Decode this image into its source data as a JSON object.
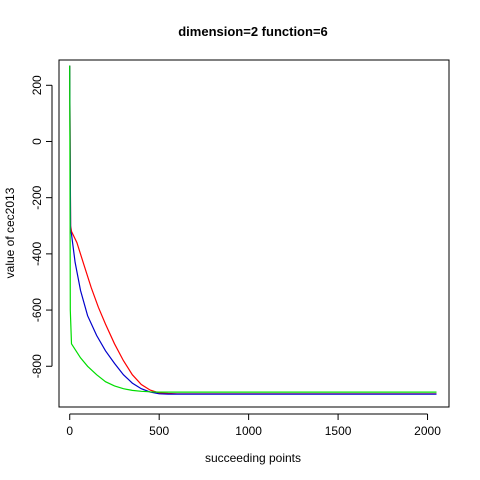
{
  "chart_data": {
    "type": "line",
    "title": "dimension=2 function=6",
    "xlabel": "succeeding points",
    "ylabel": "value of cec2013",
    "xlim": [
      -60,
      2120
    ],
    "ylim": [
      -945,
      290
    ],
    "x_ticks": [
      0,
      500,
      1000,
      1500,
      2000
    ],
    "y_ticks": [
      200,
      0,
      -200,
      -400,
      -600,
      -800
    ],
    "grid": false,
    "legend": "none",
    "series": [
      {
        "color": "#ff0000",
        "points": [
          [
            0,
            270
          ],
          [
            5,
            -300
          ],
          [
            10,
            -320
          ],
          [
            40,
            -360
          ],
          [
            80,
            -440
          ],
          [
            120,
            -520
          ],
          [
            160,
            -590
          ],
          [
            200,
            -650
          ],
          [
            250,
            -720
          ],
          [
            300,
            -780
          ],
          [
            350,
            -830
          ],
          [
            400,
            -865
          ],
          [
            450,
            -885
          ],
          [
            500,
            -895
          ],
          [
            550,
            -897
          ],
          [
            600,
            -898
          ],
          [
            1000,
            -898
          ],
          [
            2050,
            -898
          ]
        ]
      },
      {
        "color": "#0000cc",
        "points": [
          [
            0,
            270
          ],
          [
            5,
            -320
          ],
          [
            10,
            -330
          ],
          [
            30,
            -430
          ],
          [
            60,
            -530
          ],
          [
            100,
            -620
          ],
          [
            150,
            -690
          ],
          [
            200,
            -745
          ],
          [
            250,
            -790
          ],
          [
            300,
            -830
          ],
          [
            350,
            -860
          ],
          [
            400,
            -880
          ],
          [
            450,
            -892
          ],
          [
            500,
            -898
          ],
          [
            550,
            -899
          ],
          [
            1000,
            -899
          ],
          [
            2050,
            -899
          ]
        ]
      },
      {
        "color": "#00dd00",
        "points": [
          [
            0,
            270
          ],
          [
            3,
            -600
          ],
          [
            10,
            -720
          ],
          [
            30,
            -740
          ],
          [
            60,
            -770
          ],
          [
            100,
            -800
          ],
          [
            150,
            -830
          ],
          [
            200,
            -855
          ],
          [
            250,
            -870
          ],
          [
            300,
            -880
          ],
          [
            350,
            -886
          ],
          [
            400,
            -889
          ],
          [
            450,
            -891
          ],
          [
            500,
            -892
          ],
          [
            1000,
            -892
          ],
          [
            2050,
            -892
          ]
        ]
      }
    ]
  }
}
